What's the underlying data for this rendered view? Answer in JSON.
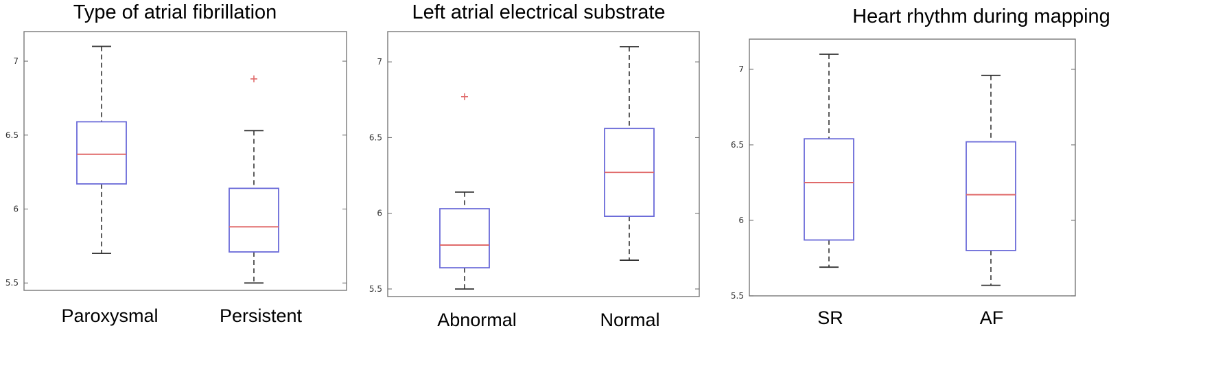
{
  "colors": {
    "box": "#6a6ad8",
    "median": "#e06a6a",
    "outlier": "#e06a6a",
    "whisker": "#333333",
    "frame": "#777777"
  },
  "chart_data": [
    {
      "type": "box",
      "title": "Type of atrial fibrillation",
      "ylim": [
        5.45,
        7.2
      ],
      "yticks": [
        5.5,
        6,
        6.5,
        7
      ],
      "ytick_labels": [
        "5.5",
        "6",
        "6.5",
        "7"
      ],
      "grid": false,
      "categories": [
        "Paroxysmal",
        "Persistent"
      ],
      "boxes": [
        {
          "whisker_low": 5.7,
          "q1": 6.17,
          "median": 6.37,
          "q3": 6.59,
          "whisker_high": 7.1,
          "outliers": []
        },
        {
          "whisker_low": 5.5,
          "q1": 5.71,
          "median": 5.88,
          "q3": 6.14,
          "whisker_high": 6.53,
          "outliers": [
            6.88
          ]
        }
      ]
    },
    {
      "type": "box",
      "title": "Left atrial electrical substrate",
      "ylim": [
        5.45,
        7.2
      ],
      "yticks": [
        5.5,
        6,
        6.5,
        7
      ],
      "ytick_labels": [
        "5.5",
        "6",
        "6.5",
        "7"
      ],
      "grid": false,
      "categories": [
        "Abnormal",
        "Normal"
      ],
      "boxes": [
        {
          "whisker_low": 5.5,
          "q1": 5.64,
          "median": 5.79,
          "q3": 6.03,
          "whisker_high": 6.14,
          "outliers": [
            6.77
          ]
        },
        {
          "whisker_low": 5.69,
          "q1": 5.98,
          "median": 6.27,
          "q3": 6.56,
          "whisker_high": 7.1,
          "outliers": []
        }
      ]
    },
    {
      "type": "box",
      "title": "Heart rhythm during mapping",
      "ylim": [
        5.5,
        7.2
      ],
      "yticks": [
        5.5,
        6,
        6.5,
        7
      ],
      "ytick_labels": [
        "5.5",
        "6",
        "6.5",
        "7"
      ],
      "grid": false,
      "categories": [
        "SR",
        "AF"
      ],
      "boxes": [
        {
          "whisker_low": 5.69,
          "q1": 5.87,
          "median": 6.25,
          "q3": 6.54,
          "whisker_high": 7.1,
          "outliers": []
        },
        {
          "whisker_low": 5.57,
          "q1": 5.8,
          "median": 6.17,
          "q3": 6.52,
          "whisker_high": 6.96,
          "outliers": []
        }
      ]
    }
  ]
}
